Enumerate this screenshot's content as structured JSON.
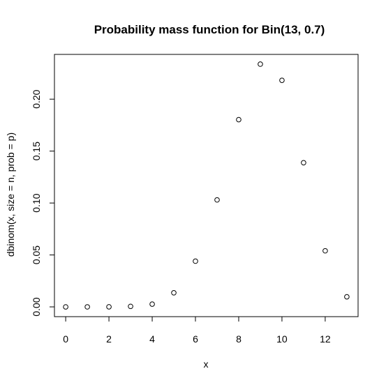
{
  "chart_data": {
    "type": "scatter",
    "title": "Probability mass function for Bin(13, 0.7)",
    "xlabel": "x",
    "ylabel": "dbinom(x, size = n, prob = p)",
    "x": [
      0,
      1,
      2,
      3,
      4,
      5,
      6,
      7,
      8,
      9,
      10,
      11,
      12,
      13
    ],
    "y": [
      2e-07,
      6e-06,
      7.17e-05,
      0.0005016,
      0.0026333,
      0.0135713,
      0.0440006,
      0.1030058,
      0.1802602,
      0.2337149,
      0.2181337,
      0.1388124,
      0.0539826,
      0.0096889
    ],
    "xlim": [
      -0.52,
      13.52
    ],
    "ylim": [
      -0.0094,
      0.2431
    ],
    "xticks": [
      0,
      2,
      4,
      6,
      8,
      10,
      12
    ],
    "xtick_labels": [
      "0",
      "2",
      "4",
      "6",
      "8",
      "10",
      "12"
    ],
    "yticks": [
      0.0,
      0.05,
      0.1,
      0.15,
      0.2
    ],
    "ytick_labels": [
      "0.00",
      "0.05",
      "0.10",
      "0.15",
      "0.20"
    ],
    "grid": false,
    "legend": "none",
    "marker": "open-circle",
    "colors": {
      "point": "#000000",
      "frame": "#000000",
      "background": "#ffffff"
    }
  }
}
